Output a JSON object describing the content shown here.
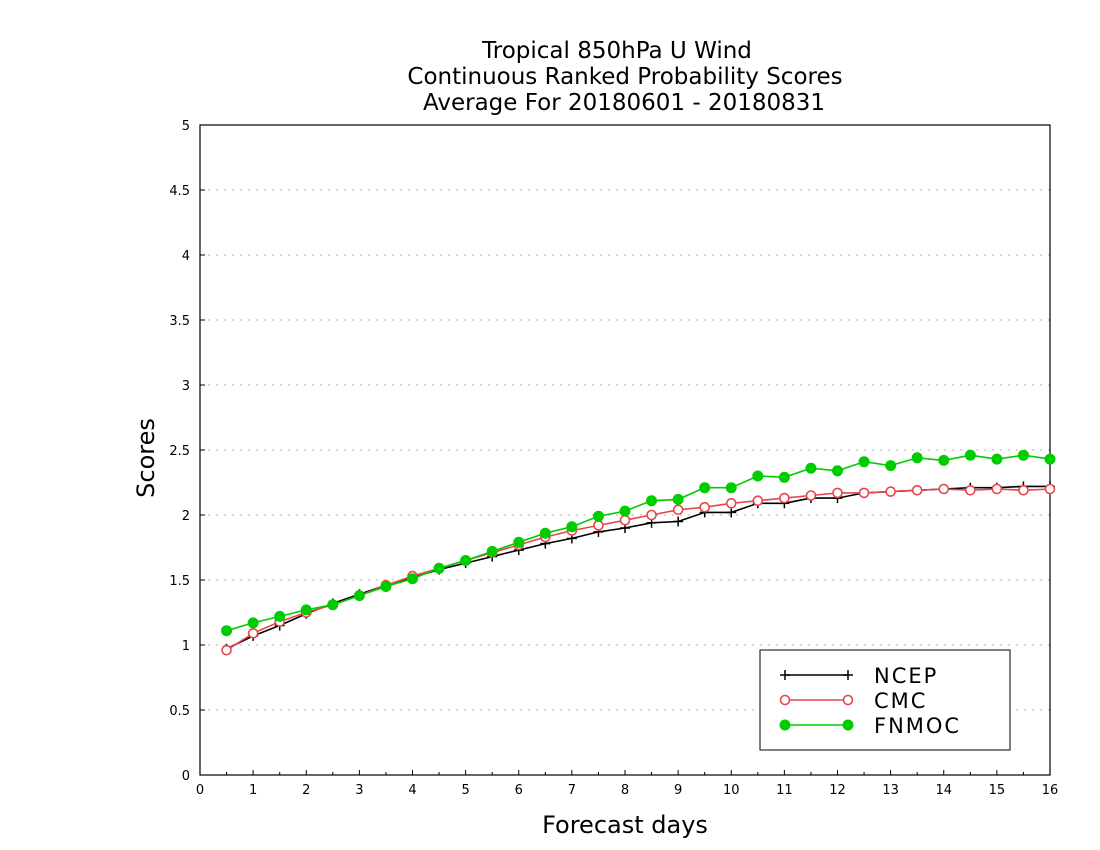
{
  "chart_data": {
    "type": "line",
    "title_lines": [
      "Tropical 850hPa U Wind",
      "Continuous Ranked Probability Scores",
      "Average For 20180601 - 20180831"
    ],
    "xlabel": "Forecast days",
    "ylabel": "Scores",
    "xlim": [
      0,
      16
    ],
    "ylim": [
      0,
      5
    ],
    "x_ticks": [
      0,
      1,
      2,
      3,
      4,
      5,
      6,
      7,
      8,
      9,
      10,
      11,
      12,
      13,
      14,
      15,
      16
    ],
    "y_ticks": [
      0,
      0.5,
      1,
      1.5,
      2,
      2.5,
      3,
      3.5,
      4,
      4.5,
      5
    ],
    "y_tick_labels": [
      "0",
      "0.5",
      "1",
      "1.5",
      "2",
      "2.5",
      "3",
      "3.5",
      "4",
      "4.5",
      "5"
    ],
    "grid": "horizontal dotted",
    "legend_position": "bottom-right",
    "x": [
      0.5,
      1,
      1.5,
      2,
      2.5,
      3,
      3.5,
      4,
      4.5,
      5,
      5.5,
      6,
      6.5,
      7,
      7.5,
      8,
      8.5,
      9,
      9.5,
      10,
      10.5,
      11,
      11.5,
      12,
      12.5,
      13,
      13.5,
      14,
      14.5,
      15,
      15.5,
      16
    ],
    "series": [
      {
        "name": "NCEP",
        "color": "#000000",
        "marker": "plus",
        "values": [
          0.97,
          1.07,
          1.15,
          1.24,
          1.32,
          1.39,
          1.46,
          1.52,
          1.58,
          1.63,
          1.68,
          1.73,
          1.78,
          1.82,
          1.87,
          1.9,
          1.94,
          1.95,
          2.02,
          2.02,
          2.09,
          2.09,
          2.13,
          2.13,
          2.17,
          2.18,
          2.19,
          2.2,
          2.21,
          2.21,
          2.22,
          2.22
        ]
      },
      {
        "name": "CMC",
        "color": "#e8464b",
        "marker": "open-circle",
        "values": [
          0.96,
          1.09,
          1.18,
          1.25,
          1.31,
          1.38,
          1.46,
          1.53,
          1.59,
          1.65,
          1.71,
          1.77,
          1.83,
          1.88,
          1.92,
          1.96,
          2.0,
          2.04,
          2.06,
          2.09,
          2.11,
          2.13,
          2.15,
          2.17,
          2.17,
          2.18,
          2.19,
          2.2,
          2.19,
          2.2,
          2.19,
          2.2
        ]
      },
      {
        "name": "FNMOC",
        "color": "#00cc00",
        "marker": "filled-circle",
        "values": [
          1.11,
          1.17,
          1.22,
          1.27,
          1.31,
          1.38,
          1.45,
          1.51,
          1.59,
          1.65,
          1.72,
          1.79,
          1.86,
          1.91,
          1.99,
          2.03,
          2.11,
          2.12,
          2.21,
          2.21,
          2.3,
          2.29,
          2.36,
          2.34,
          2.41,
          2.38,
          2.44,
          2.42,
          2.46,
          2.43,
          2.46,
          2.43
        ]
      }
    ]
  }
}
